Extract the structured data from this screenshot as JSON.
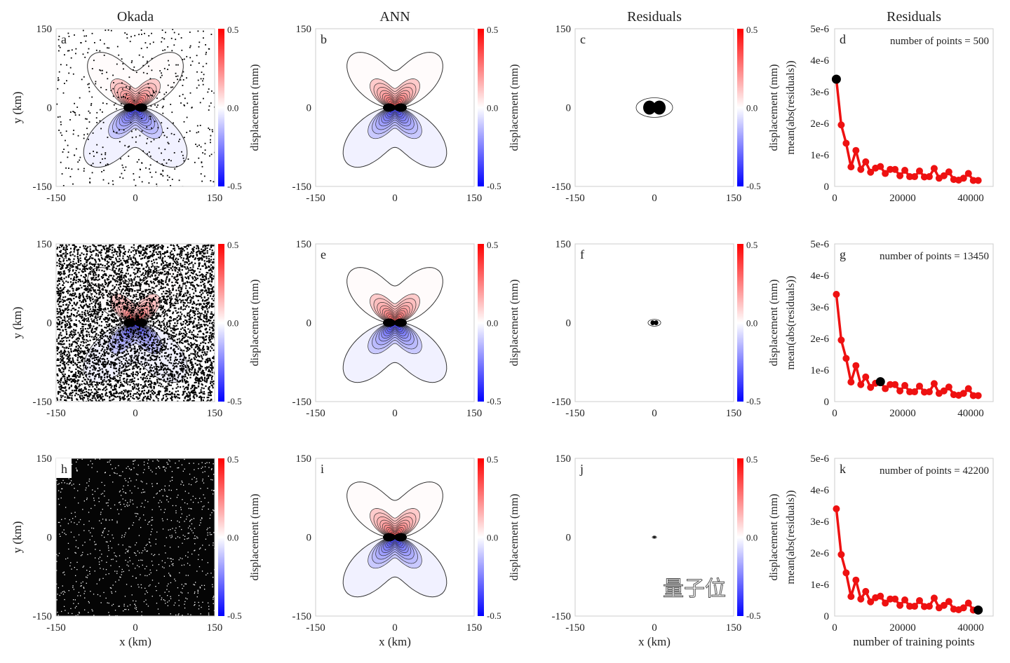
{
  "column_titles": [
    "Okada",
    "ANN",
    "Residuals",
    "Residuals"
  ],
  "panel_letters": [
    [
      "a",
      "b",
      "c",
      "d"
    ],
    [
      "d",
      "e",
      "f",
      "g"
    ],
    [
      "h",
      "i",
      "j",
      "k"
    ]
  ],
  "map_axes": {
    "x_ticks": [
      "-150",
      "0",
      "150"
    ],
    "y_ticks": [
      "150",
      "0",
      "-150"
    ],
    "xlabel": "x (km)",
    "ylabel": "y (km)"
  },
  "colorbar": {
    "label": "displacement (mm)",
    "ticks": [
      "0.5",
      "0.0",
      "-0.5"
    ],
    "range": [
      -0.5,
      0.5
    ],
    "colors": {
      "max": "#ff0000",
      "mid": "#ffffff",
      "min": "#0000ff"
    }
  },
  "okada_point_counts": [
    500,
    13450,
    42200
  ],
  "watermark": "量子位",
  "chart_data": {
    "type": "line",
    "ylabel": "mean(abs(residuals))",
    "xlabel": "number of training points",
    "x_ticks": [
      "0",
      "20000",
      "40000"
    ],
    "y_ticks": [
      "0",
      "1e-6",
      "2e-6",
      "3e-6",
      "4e-6",
      "5e-6"
    ],
    "xlim": [
      0,
      46600
    ],
    "ylim": [
      0,
      5e-06
    ],
    "line_color": "#ee1111",
    "highlight_color": "#000000",
    "x": [
      500,
      1938,
      3376,
      4814,
      6252,
      7690,
      9128,
      10566,
      12004,
      13450,
      14880,
      16318,
      17756,
      19194,
      20632,
      22070,
      23508,
      24946,
      26384,
      27822,
      29260,
      30698,
      32136,
      33574,
      35012,
      36450,
      37888,
      39326,
      40764,
      42200
    ],
    "y": [
      3.4e-06,
      1.95e-06,
      1.37e-06,
      6.2e-07,
      1.14e-06,
      5.4e-07,
      7.8e-07,
      4.5e-07,
      5.8e-07,
      6.3e-07,
      4.1e-07,
      5.4e-07,
      5.4e-07,
      3.4e-07,
      5.1e-07,
      3.1e-07,
      3.1e-07,
      4.9e-07,
      3e-07,
      3.1e-07,
      5.7e-07,
      2.6e-07,
      3.4e-07,
      4.6e-07,
      2.2e-07,
      2e-07,
      2.6e-07,
      4.1e-07,
      1.9e-07,
      1.9e-07
    ],
    "panels": [
      {
        "annotation": "number of points = 500",
        "highlight_index": 0
      },
      {
        "annotation": "number of points = 13450",
        "highlight_index": 9
      },
      {
        "annotation": "number of points = 42200",
        "highlight_index": 29
      }
    ]
  }
}
